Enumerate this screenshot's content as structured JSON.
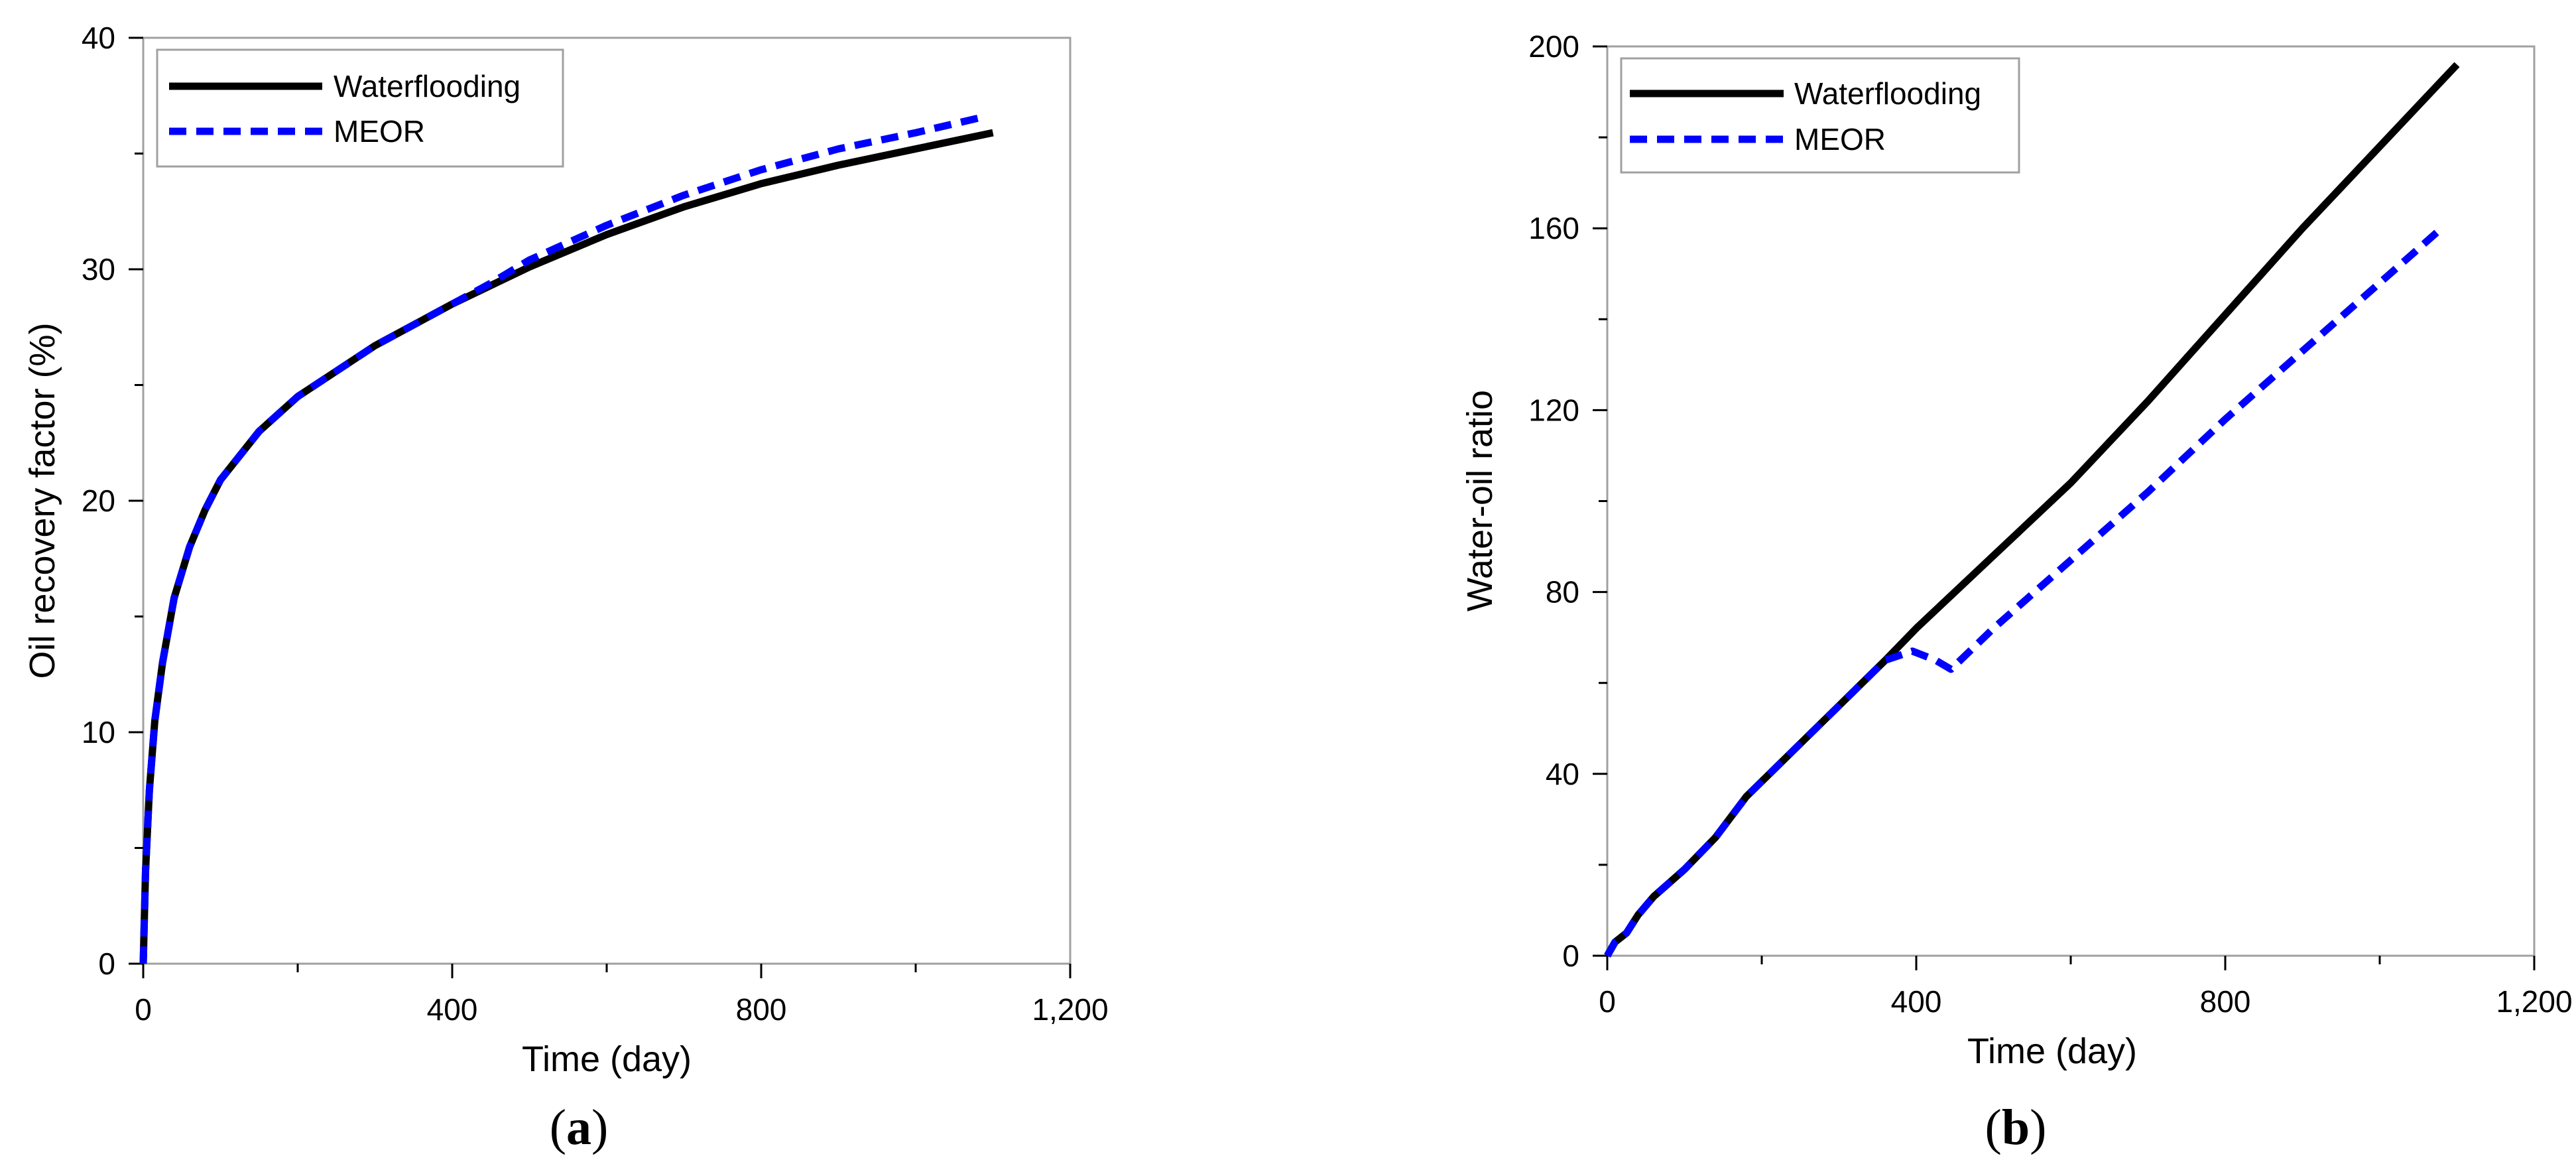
{
  "chart_data": [
    {
      "type": "line",
      "panel_label": "a",
      "xlabel": "Time (day)",
      "ylabel": "Oil recovery factor (%)",
      "xlim": [
        0,
        1200
      ],
      "ylim": [
        0,
        40
      ],
      "x_ticks": [
        0,
        400,
        800,
        1200
      ],
      "x_tick_labels": [
        "0",
        "400",
        "800",
        "1,200"
      ],
      "y_ticks": [
        0,
        10,
        20,
        30,
        40
      ],
      "y_tick_labels": [
        "0",
        "10",
        "20",
        "30",
        "40"
      ],
      "grid": false,
      "legend": "top-left",
      "series": [
        {
          "name": "Waterflooding",
          "color": "#000000",
          "style": "solid",
          "points": [
            [
              0,
              0
            ],
            [
              3,
              4
            ],
            [
              8,
              7.5
            ],
            [
              15,
              10.5
            ],
            [
              25,
              13
            ],
            [
              40,
              15.8
            ],
            [
              60,
              18
            ],
            [
              80,
              19.6
            ],
            [
              100,
              20.9
            ],
            [
              150,
              23
            ],
            [
              200,
              24.5
            ],
            [
              300,
              26.7
            ],
            [
              400,
              28.5
            ],
            [
              500,
              30.1
            ],
            [
              600,
              31.5
            ],
            [
              700,
              32.7
            ],
            [
              800,
              33.7
            ],
            [
              900,
              34.5
            ],
            [
              1000,
              35.2
            ],
            [
              1100,
              35.9
            ]
          ]
        },
        {
          "name": "MEOR",
          "color": "#0000ff",
          "style": "dashed",
          "points": [
            [
              0,
              0
            ],
            [
              3,
              4
            ],
            [
              8,
              7.5
            ],
            [
              15,
              10.5
            ],
            [
              25,
              13
            ],
            [
              40,
              15.8
            ],
            [
              60,
              18
            ],
            [
              80,
              19.6
            ],
            [
              100,
              20.9
            ],
            [
              150,
              23
            ],
            [
              200,
              24.5
            ],
            [
              300,
              26.7
            ],
            [
              400,
              28.5
            ],
            [
              450,
              29.4
            ],
            [
              500,
              30.4
            ],
            [
              600,
              31.9
            ],
            [
              700,
              33.2
            ],
            [
              800,
              34.3
            ],
            [
              900,
              35.2
            ],
            [
              1000,
              35.9
            ],
            [
              1090,
              36.6
            ]
          ]
        }
      ]
    },
    {
      "type": "line",
      "panel_label": "b",
      "xlabel": "Time (day)",
      "ylabel": "Water-oil ratio",
      "xlim": [
        0,
        1200
      ],
      "ylim": [
        0,
        200
      ],
      "x_ticks": [
        0,
        400,
        800,
        1200
      ],
      "x_tick_labels": [
        "0",
        "400",
        "800",
        "1,200"
      ],
      "y_ticks": [
        0,
        40,
        80,
        120,
        160,
        200
      ],
      "y_tick_labels": [
        "0",
        "40",
        "80",
        "120",
        "160",
        "200"
      ],
      "grid": false,
      "legend": "top-left",
      "series": [
        {
          "name": "Waterflooding",
          "color": "#000000",
          "style": "solid",
          "points": [
            [
              0,
              0
            ],
            [
              10,
              3
            ],
            [
              25,
              5
            ],
            [
              40,
              9
            ],
            [
              60,
              13
            ],
            [
              100,
              19
            ],
            [
              140,
              26
            ],
            [
              180,
              35
            ],
            [
              240,
              45
            ],
            [
              300,
              55
            ],
            [
              360,
              65
            ],
            [
              400,
              72
            ],
            [
              500,
              88
            ],
            [
              600,
              104
            ],
            [
              700,
              122
            ],
            [
              800,
              141
            ],
            [
              900,
              160
            ],
            [
              1000,
              178
            ],
            [
              1100,
              196
            ]
          ]
        },
        {
          "name": "MEOR",
          "color": "#0000ff",
          "style": "dashed",
          "points": [
            [
              0,
              0
            ],
            [
              10,
              3
            ],
            [
              25,
              5
            ],
            [
              40,
              9
            ],
            [
              60,
              13
            ],
            [
              100,
              19
            ],
            [
              140,
              26
            ],
            [
              180,
              35
            ],
            [
              240,
              45
            ],
            [
              300,
              55
            ],
            [
              360,
              65
            ],
            [
              395,
              67
            ],
            [
              425,
              65
            ],
            [
              445,
              63
            ],
            [
              500,
              72
            ],
            [
              600,
              87
            ],
            [
              700,
              102
            ],
            [
              800,
              118
            ],
            [
              900,
              133
            ],
            [
              1000,
              148
            ],
            [
              1080,
              160
            ]
          ]
        }
      ]
    }
  ]
}
